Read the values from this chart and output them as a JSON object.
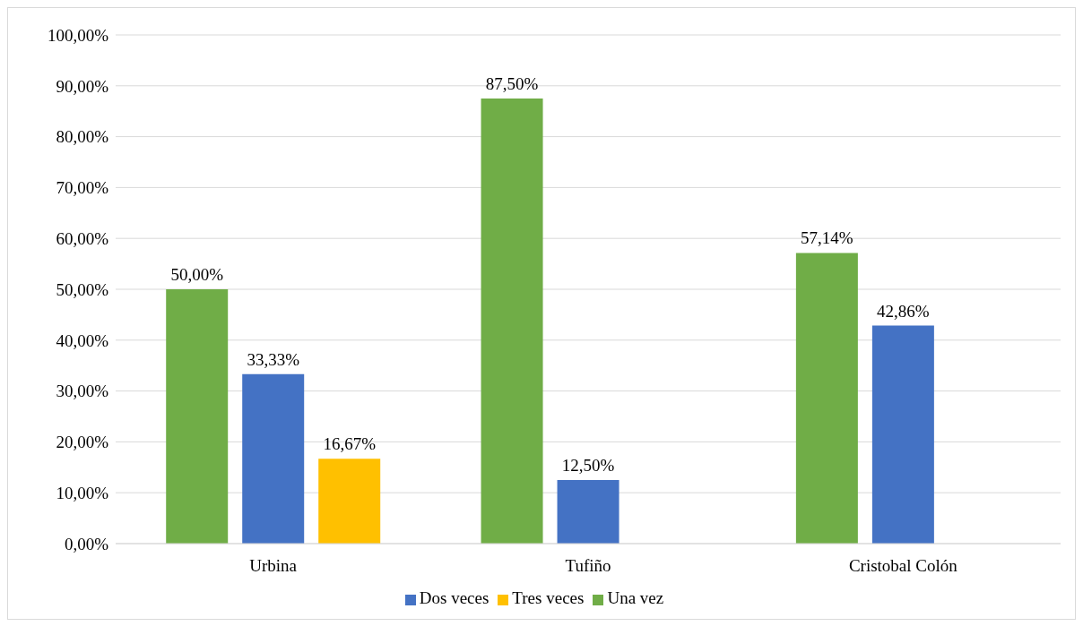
{
  "chart_data": {
    "type": "bar",
    "categories": [
      "Urbina",
      "Tufiño",
      "Cristobal Colón"
    ],
    "series": [
      {
        "name": "Una vez",
        "color": "#70ad47",
        "values": [
          50,
          87.5,
          57.14
        ],
        "value_labels": [
          "50,00%",
          "87,50%",
          "57,14%"
        ]
      },
      {
        "name": "Dos veces",
        "color": "#4472c4",
        "values": [
          33.33,
          12.5,
          42.86
        ],
        "value_labels": [
          "33,33%",
          "12,50%",
          "42,86%"
        ]
      },
      {
        "name": "Tres veces",
        "color": "#ffc000",
        "values": [
          16.67,
          null,
          null
        ],
        "value_labels": [
          "16,67%",
          null,
          null
        ]
      }
    ],
    "ylim": [
      0,
      100
    ],
    "yticks": [
      {
        "value": 0,
        "label": "0,00%"
      },
      {
        "value": 10,
        "label": "10,00%"
      },
      {
        "value": 20,
        "label": "20,00%"
      },
      {
        "value": 30,
        "label": "30,00%"
      },
      {
        "value": 40,
        "label": "40,00%"
      },
      {
        "value": 50,
        "label": "50,00%"
      },
      {
        "value": 60,
        "label": "60,00%"
      },
      {
        "value": 70,
        "label": "70,00%"
      },
      {
        "value": 80,
        "label": "80,00%"
      },
      {
        "value": 90,
        "label": "90,00%"
      },
      {
        "value": 100,
        "label": "100,00%"
      }
    ],
    "grid": "y",
    "legend": "bottom"
  }
}
